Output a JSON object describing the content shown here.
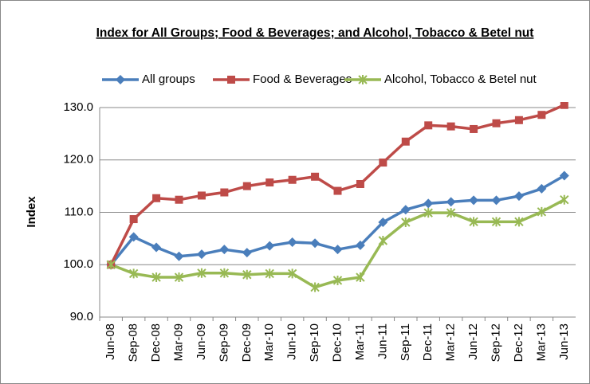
{
  "chart_data": {
    "type": "line",
    "title": "Index for All Groups; Food & Beverages; and Alcohol, Tobacco & Betel nut",
    "ylabel": "Index",
    "categories": [
      "Jun-08",
      "Sep-08",
      "Dec-08",
      "Mar-09",
      "Jun-09",
      "Sep-09",
      "Dec-09",
      "Mar-10",
      "Jun-10",
      "Sep-10",
      "Dec-10",
      "Mar-11",
      "Jun-11",
      "Sep-11",
      "Dec-11",
      "Mar-12",
      "Jun-12",
      "Sep-12",
      "Dec-12",
      "Mar-13",
      "Jun-13"
    ],
    "series": [
      {
        "name": "All groups",
        "color": "#4a7ebb",
        "marker": "diamond",
        "values": [
          100,
          105.3,
          103.3,
          101.6,
          102.0,
          102.9,
          102.3,
          103.6,
          104.3,
          104.1,
          102.9,
          103.7,
          108.1,
          110.5,
          111.7,
          112.0,
          112.3,
          112.3,
          113.1,
          114.5,
          117.0
        ]
      },
      {
        "name": "Food & Beverages",
        "color": "#be4b48",
        "marker": "square",
        "values": [
          100,
          108.7,
          112.7,
          112.4,
          113.2,
          113.8,
          115.0,
          115.7,
          116.2,
          116.8,
          114.1,
          115.4,
          119.5,
          123.5,
          126.6,
          126.4,
          125.9,
          127.0,
          127.6,
          128.6,
          130.5
        ]
      },
      {
        "name": "Alcohol, Tobacco & Betel nut",
        "color": "#98b954",
        "marker": "star",
        "values": [
          100,
          98.3,
          97.6,
          97.6,
          98.4,
          98.4,
          98.1,
          98.3,
          98.3,
          95.7,
          97.0,
          97.6,
          104.6,
          108.1,
          109.9,
          109.9,
          108.2,
          108.2,
          108.2,
          110.1,
          112.4
        ]
      }
    ],
    "ylim": [
      90,
      130
    ],
    "yticks": [
      {
        "value": 90,
        "label": "90.0"
      },
      {
        "value": 100,
        "label": "100.0"
      },
      {
        "value": 110,
        "label": "110.0"
      },
      {
        "value": 120,
        "label": "120.0"
      },
      {
        "value": 130,
        "label": "130.0"
      }
    ],
    "grid": true,
    "legend": "top"
  }
}
